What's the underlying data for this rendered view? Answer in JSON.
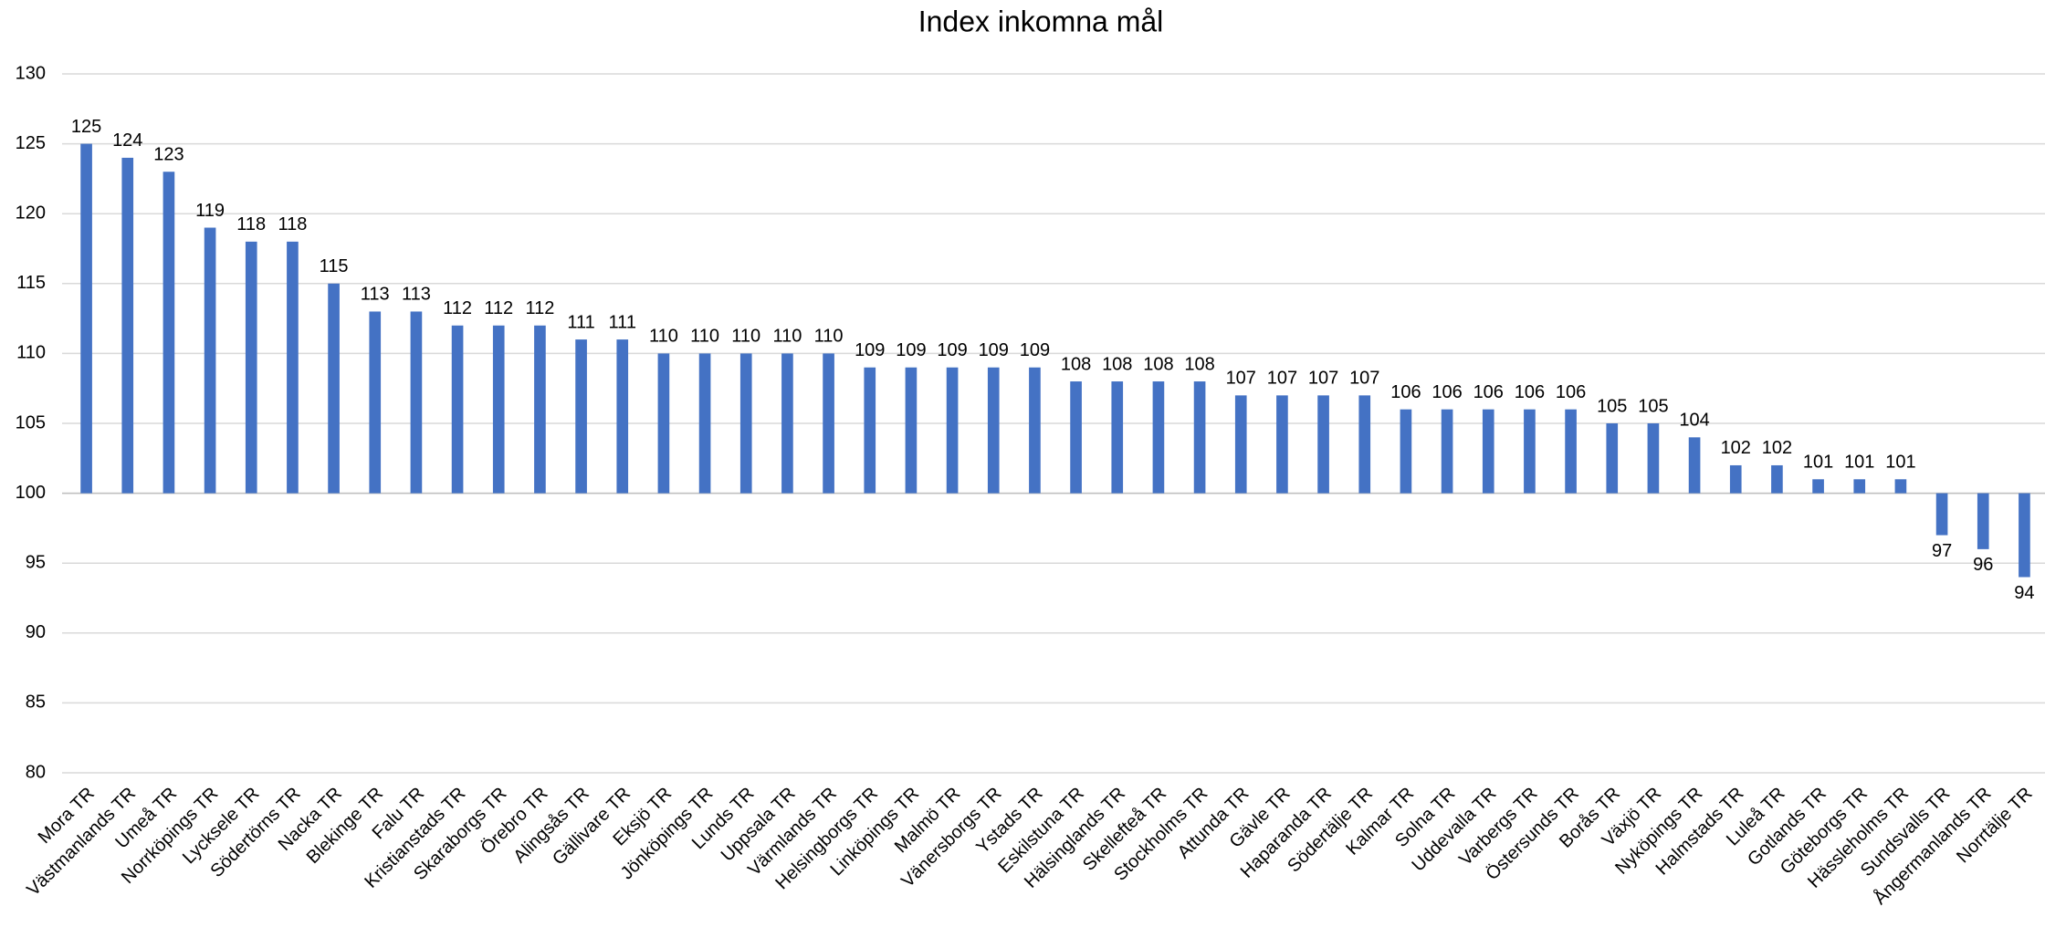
{
  "chart_data": {
    "type": "bar",
    "title": "Index inkomna mål",
    "categories": [
      "Mora TR",
      "Västmanlands TR",
      "Umeå TR",
      "Norrköpings TR",
      "Lycksele TR",
      "Södertörns TR",
      "Nacka TR",
      "Blekinge TR",
      "Falu TR",
      "Kristianstads TR",
      "Skaraborgs TR",
      "Örebro TR",
      "Alingsås TR",
      "Gällivare TR",
      "Eksjö TR",
      "Jönköpings TR",
      "Lunds TR",
      "Uppsala TR",
      "Värmlands TR",
      "Helsingborgs TR",
      "Linköpings TR",
      "Malmö TR",
      "Vänersborgs TR",
      "Ystads TR",
      "Eskilstuna TR",
      "Hälsinglands TR",
      "Skellefteå TR",
      "Stockholms TR",
      "Attunda TR",
      "Gävle TR",
      "Haparanda TR",
      "Södertälje TR",
      "Kalmar TR",
      "Solna TR",
      "Uddevalla TR",
      "Varbergs TR",
      "Östersunds TR",
      "Borås TR",
      "Växjö TR",
      "Nyköpings TR",
      "Halmstads TR",
      "Luleå TR",
      "Gotlands TR",
      "Göteborgs TR",
      "Hässleholms TR",
      "Sundsvalls TR",
      "Ångermanlands TR",
      "Norrtälje TR"
    ],
    "values": [
      125,
      124,
      123,
      119,
      118,
      118,
      115,
      113,
      113,
      112,
      112,
      112,
      111,
      111,
      110,
      110,
      110,
      110,
      110,
      109,
      109,
      109,
      109,
      109,
      108,
      108,
      108,
      108,
      107,
      107,
      107,
      107,
      106,
      106,
      106,
      106,
      106,
      105,
      105,
      104,
      102,
      102,
      101,
      101,
      101,
      97,
      96,
      94
    ],
    "color": "#4472c4",
    "bar_base": 100,
    "ylim": [
      80,
      130
    ],
    "yticks": [
      80,
      85,
      90,
      95,
      100,
      105,
      110,
      115,
      120,
      125,
      130
    ],
    "grid": true
  }
}
